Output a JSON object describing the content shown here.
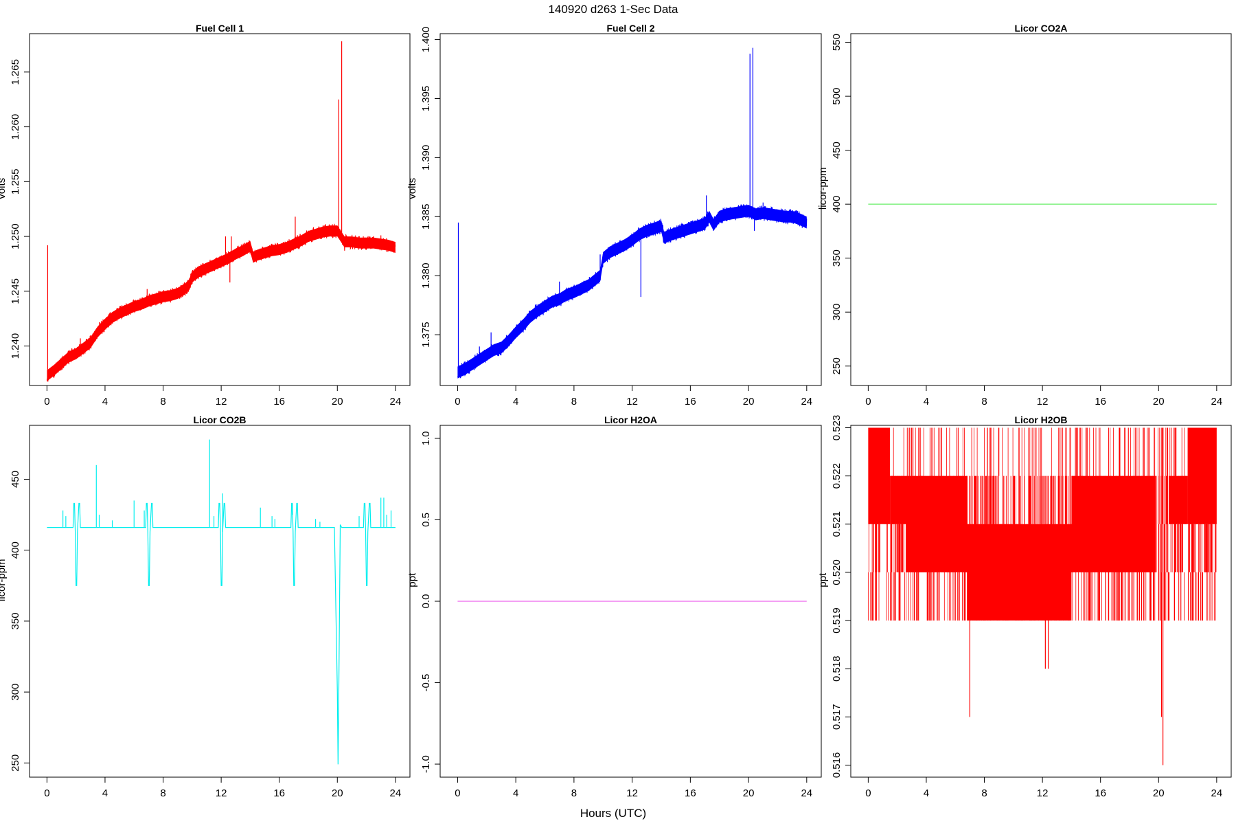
{
  "figure": {
    "title": "140920   d263   1-Sec Data",
    "xlabel": "Hours (UTC)"
  },
  "chart_data": [
    {
      "type": "line",
      "title": "Fuel Cell 1",
      "ylabel": "volts",
      "xlim": [
        -1.2,
        25.0
      ],
      "ylim": [
        1.2364,
        1.2685
      ],
      "xticks": [
        0,
        4,
        8,
        12,
        16,
        20,
        24
      ],
      "yticks": [
        1.24,
        1.245,
        1.25,
        1.255,
        1.26,
        1.265
      ],
      "ytick_labels": [
        "1.240",
        "1.245",
        "1.250",
        "1.255",
        "1.260",
        "1.265"
      ],
      "color": "#ff0000",
      "band": 0.0005,
      "x": [
        0,
        0.5,
        1,
        1.5,
        2,
        2.5,
        3,
        3.5,
        4,
        4.5,
        5,
        5.5,
        6,
        6.5,
        7,
        7.5,
        8,
        8.5,
        9,
        9.5,
        9.8,
        10,
        10.5,
        11,
        11.5,
        12,
        12.5,
        13,
        13.5,
        14,
        14.2,
        14.5,
        15,
        15.5,
        16,
        16.5,
        17,
        17.5,
        18,
        18.5,
        19,
        19.5,
        20,
        20.5,
        21,
        21.5,
        22,
        22.5,
        23,
        23.5,
        24
      ],
      "y": [
        1.2373,
        1.2378,
        1.2384,
        1.239,
        1.2393,
        1.2398,
        1.2403,
        1.2413,
        1.242,
        1.2426,
        1.243,
        1.2433,
        1.2436,
        1.2438,
        1.2441,
        1.2443,
        1.2445,
        1.2446,
        1.2448,
        1.2452,
        1.2456,
        1.2463,
        1.2468,
        1.2471,
        1.2474,
        1.2477,
        1.248,
        1.2484,
        1.2487,
        1.2491,
        1.2481,
        1.2483,
        1.2485,
        1.2487,
        1.2488,
        1.249,
        1.2493,
        1.2496,
        1.25,
        1.2502,
        1.2504,
        1.2505,
        1.2505,
        1.2495,
        1.2495,
        1.2494,
        1.2494,
        1.2494,
        1.2493,
        1.2492,
        1.249
      ],
      "spikes": [
        [
          0.05,
          1.2492
        ],
        [
          0.1,
          1.2378
        ],
        [
          2.3,
          1.2407
        ],
        [
          6.9,
          1.2452
        ],
        [
          12.3,
          1.25
        ],
        [
          12.6,
          1.2458
        ],
        [
          12.7,
          1.25
        ],
        [
          17.1,
          1.2518
        ],
        [
          20.1,
          1.2625
        ],
        [
          20.3,
          1.2678
        ],
        [
          20.5,
          1.2487
        ],
        [
          23.0,
          1.2501
        ]
      ]
    },
    {
      "type": "line",
      "title": "Fuel Cell 2",
      "ylabel": "volts",
      "xlim": [
        -1.2,
        25.0
      ],
      "ylim": [
        1.3707,
        1.4005
      ],
      "xticks": [
        0,
        4,
        8,
        12,
        16,
        20,
        24
      ],
      "yticks": [
        1.375,
        1.38,
        1.385,
        1.39,
        1.395,
        1.4
      ],
      "ytick_labels": [
        "1.375",
        "1.380",
        "1.385",
        "1.390",
        "1.395",
        "1.400"
      ],
      "color": "#0000ff",
      "band": 0.0005,
      "x": [
        0,
        0.5,
        1,
        1.5,
        2,
        2.5,
        3,
        3.5,
        4,
        4.5,
        5,
        5.5,
        6,
        6.5,
        7,
        7.5,
        8,
        8.5,
        9,
        9.5,
        9.8,
        10,
        10.5,
        11,
        11.5,
        12,
        12.5,
        13,
        13.5,
        14,
        14.2,
        14.5,
        15,
        15.5,
        16,
        16.5,
        17,
        17.3,
        17.6,
        18,
        18.5,
        19,
        19.5,
        20,
        20.5,
        21,
        21.5,
        22,
        22.5,
        23,
        23.5,
        24
      ],
      "y": [
        1.3718,
        1.3721,
        1.3725,
        1.3729,
        1.3733,
        1.3737,
        1.3739,
        1.3745,
        1.3752,
        1.3758,
        1.3765,
        1.377,
        1.3774,
        1.3778,
        1.378,
        1.3784,
        1.3786,
        1.3789,
        1.3792,
        1.3797,
        1.38,
        1.3815,
        1.382,
        1.3823,
        1.3826,
        1.383,
        1.3835,
        1.3838,
        1.384,
        1.3842,
        1.3832,
        1.3834,
        1.3836,
        1.3838,
        1.384,
        1.3842,
        1.3844,
        1.385,
        1.3843,
        1.385,
        1.3852,
        1.3853,
        1.3854,
        1.3855,
        1.3852,
        1.3853,
        1.3852,
        1.3851,
        1.385,
        1.385,
        1.3848,
        1.3845
      ],
      "spikes": [
        [
          0.05,
          1.3845
        ],
        [
          0.1,
          1.372
        ],
        [
          1.5,
          1.374
        ],
        [
          2.3,
          1.3752
        ],
        [
          7.0,
          1.3795
        ],
        [
          9.8,
          1.3818
        ],
        [
          12.6,
          1.3782
        ],
        [
          12.7,
          1.3838
        ],
        [
          17.1,
          1.3868
        ],
        [
          20.1,
          1.3988
        ],
        [
          20.3,
          1.3993
        ],
        [
          20.4,
          1.3838
        ],
        [
          21.0,
          1.3862
        ]
      ]
    },
    {
      "type": "line",
      "title": "Licor CO2A",
      "ylabel": "licor-ppm",
      "xlim": [
        -1.2,
        25.0
      ],
      "ylim": [
        232,
        558
      ],
      "xticks": [
        0,
        4,
        8,
        12,
        16,
        20,
        24
      ],
      "yticks": [
        250,
        300,
        350,
        400,
        450,
        500,
        550
      ],
      "ytick_labels": [
        "250",
        "300",
        "350",
        "400",
        "450",
        "500",
        "550"
      ],
      "color": "#66ee66",
      "band": 0,
      "x": [
        0,
        24
      ],
      "y": [
        400,
        400
      ],
      "spikes": []
    },
    {
      "type": "line",
      "title": "Licor CO2B",
      "ylabel": "licor-ppm",
      "xlim": [
        -1.2,
        25.0
      ],
      "ylim": [
        240,
        488
      ],
      "xticks": [
        0,
        4,
        8,
        12,
        16,
        20,
        24
      ],
      "yticks": [
        250,
        300,
        350,
        400,
        450
      ],
      "ytick_labels": [
        "250",
        "300",
        "350",
        "400",
        "450"
      ],
      "color": "#00eeee",
      "band": 0,
      "x": [
        0,
        1.8,
        1.85,
        1.9,
        1.95,
        2.0,
        2.05,
        2.1,
        2.2,
        2.25,
        2.3,
        6.8,
        6.85,
        6.9,
        6.95,
        7.0,
        7.05,
        7.1,
        7.2,
        7.25,
        7.3,
        11.8,
        11.85,
        11.9,
        11.95,
        12.0,
        12.05,
        12.1,
        12.2,
        12.25,
        12.3,
        16.8,
        16.85,
        16.9,
        16.95,
        17.0,
        17.05,
        17.1,
        17.2,
        17.25,
        17.3,
        19.8,
        20.0,
        20.05,
        20.1,
        20.2,
        20.3,
        21.8,
        21.85,
        21.9,
        21.95,
        22.0,
        22.05,
        22.1,
        22.2,
        22.25,
        22.3,
        24
      ],
      "y": [
        416,
        416,
        433,
        433,
        413,
        375,
        375,
        413,
        433,
        433,
        416,
        416,
        433,
        433,
        413,
        375,
        375,
        413,
        433,
        433,
        416,
        416,
        433,
        433,
        413,
        375,
        375,
        413,
        433,
        433,
        416,
        416,
        433,
        433,
        413,
        375,
        375,
        413,
        433,
        433,
        416,
        416,
        300,
        249,
        300,
        418,
        416,
        416,
        433,
        433,
        413,
        375,
        375,
        413,
        433,
        433,
        416,
        416
      ],
      "spikes": [
        [
          1.1,
          428
        ],
        [
          1.3,
          424
        ],
        [
          3.4,
          460
        ],
        [
          3.6,
          425
        ],
        [
          4.5,
          421
        ],
        [
          6.0,
          435
        ],
        [
          6.7,
          428
        ],
        [
          11.2,
          478
        ],
        [
          11.5,
          424
        ],
        [
          12.1,
          440
        ],
        [
          14.7,
          430
        ],
        [
          15.5,
          424
        ],
        [
          15.7,
          422
        ],
        [
          16.9,
          425
        ],
        [
          18.5,
          422
        ],
        [
          18.8,
          420
        ],
        [
          21.5,
          424
        ],
        [
          22.2,
          432
        ],
        [
          23.0,
          437
        ],
        [
          23.2,
          437
        ],
        [
          23.4,
          425
        ],
        [
          23.7,
          428
        ]
      ]
    },
    {
      "type": "line",
      "title": "Licor H2OA",
      "ylabel": "ppt",
      "xlim": [
        -1.2,
        25.0
      ],
      "ylim": [
        -1.08,
        1.08
      ],
      "xticks": [
        0,
        4,
        8,
        12,
        16,
        20,
        24
      ],
      "yticks": [
        -1.0,
        -0.5,
        0.0,
        0.5,
        1.0
      ],
      "ytick_labels": [
        "-1.0",
        "-0.5",
        "0.0",
        "0.5",
        "1.0"
      ],
      "color": "#ee66ee",
      "band": 0,
      "x": [
        0,
        24
      ],
      "y": [
        0,
        0
      ],
      "spikes": []
    },
    {
      "type": "line",
      "title": "Licor H2OB",
      "ylabel": "ppt",
      "xlim": [
        -1.2,
        25.0
      ],
      "ylim": [
        0.51575,
        0.52305
      ],
      "xticks": [
        0,
        4,
        8,
        12,
        16,
        20,
        24
      ],
      "yticks": [
        0.516,
        0.517,
        0.518,
        0.519,
        0.52,
        0.521,
        0.522,
        0.523
      ],
      "ytick_labels": [
        "0.516",
        "0.517",
        "0.518",
        "0.519",
        "0.520",
        "0.521",
        "0.522",
        "0.523"
      ],
      "color": "#ff0000",
      "band": 0,
      "blocks": [
        [
          0,
          1.5,
          0.521,
          0.523
        ],
        [
          1.5,
          2.6,
          0.521,
          0.522
        ],
        [
          2.6,
          6.8,
          0.52,
          0.522
        ],
        [
          6.8,
          9.5,
          0.519,
          0.521
        ],
        [
          9.5,
          14.0,
          0.519,
          0.521
        ],
        [
          14.0,
          19.8,
          0.52,
          0.522
        ],
        [
          20.7,
          22.0,
          0.521,
          0.522
        ],
        [
          22.0,
          24.0,
          0.521,
          0.523
        ]
      ],
      "x": [],
      "y": [],
      "spikes": [
        [
          7.0,
          0.517
        ],
        [
          12.2,
          0.518
        ],
        [
          12.4,
          0.518
        ],
        [
          20.2,
          0.517
        ],
        [
          20.3,
          0.516
        ],
        [
          3.0,
          0.523
        ],
        [
          9.0,
          0.523
        ],
        [
          15.0,
          0.523
        ],
        [
          1.6,
          0.52
        ],
        [
          17.2,
          0.519
        ]
      ]
    }
  ]
}
